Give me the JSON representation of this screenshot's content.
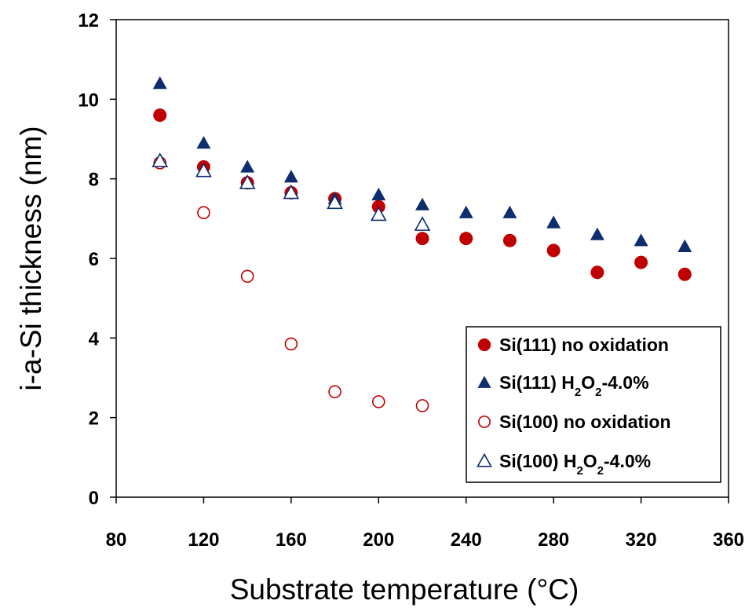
{
  "chart_data": {
    "type": "scatter",
    "xlabel": "Substrate temperature (°C)",
    "ylabel": "i-a-Si thickness (nm)",
    "xlim": [
      80,
      360
    ],
    "ylim": [
      0,
      12
    ],
    "xticks": [
      80,
      120,
      160,
      200,
      240,
      280,
      320,
      360
    ],
    "yticks": [
      0,
      2,
      4,
      6,
      8,
      10,
      12
    ],
    "grid": false,
    "legend_position": "bottom-right",
    "series": [
      {
        "name": "Si(111) no oxidation",
        "name_parts": [
          {
            "text": "Si(111) no oxidation",
            "sub": false
          }
        ],
        "marker": "filled-circle",
        "color": "#c00000",
        "x": [
          100,
          120,
          140,
          160,
          180,
          200,
          220,
          240,
          260,
          280,
          300,
          320,
          340
        ],
        "y": [
          9.6,
          8.3,
          7.9,
          7.65,
          7.5,
          7.3,
          6.5,
          6.5,
          6.45,
          6.2,
          5.65,
          5.9,
          5.6
        ]
      },
      {
        "name": "Si(111) H2O2-4.0%",
        "name_parts": [
          {
            "text": "Si(111) H",
            "sub": false
          },
          {
            "text": "2",
            "sub": true
          },
          {
            "text": "O",
            "sub": false
          },
          {
            "text": "2",
            "sub": true
          },
          {
            "text": "-4.0%",
            "sub": false
          }
        ],
        "marker": "filled-triangle",
        "color": "#0d2d6e",
        "x": [
          100,
          120,
          140,
          160,
          180,
          200,
          220,
          240,
          260,
          280,
          300,
          320,
          340
        ],
        "y": [
          10.4,
          8.9,
          8.3,
          8.05,
          7.5,
          7.6,
          7.35,
          7.15,
          7.15,
          6.9,
          6.6,
          6.45,
          6.3
        ]
      },
      {
        "name": "Si(100) no oxidation",
        "name_parts": [
          {
            "text": "Si(100) no oxidation",
            "sub": false
          }
        ],
        "marker": "open-circle",
        "color": "#c00000",
        "x": [
          100,
          120,
          140,
          160,
          180,
          200,
          220
        ],
        "y": [
          8.4,
          7.15,
          5.55,
          3.85,
          2.65,
          2.4,
          2.3
        ]
      },
      {
        "name": "Si(100) H2O2-4.0%",
        "name_parts": [
          {
            "text": "Si(100) H",
            "sub": false
          },
          {
            "text": "2",
            "sub": true
          },
          {
            "text": "O",
            "sub": false
          },
          {
            "text": "2",
            "sub": true
          },
          {
            "text": "-4.0%",
            "sub": false
          }
        ],
        "marker": "open-triangle",
        "color": "#0d2d6e",
        "x": [
          100,
          120,
          140,
          160,
          180,
          200,
          220
        ],
        "y": [
          8.45,
          8.2,
          7.9,
          7.65,
          7.4,
          7.1,
          6.85
        ]
      }
    ]
  }
}
